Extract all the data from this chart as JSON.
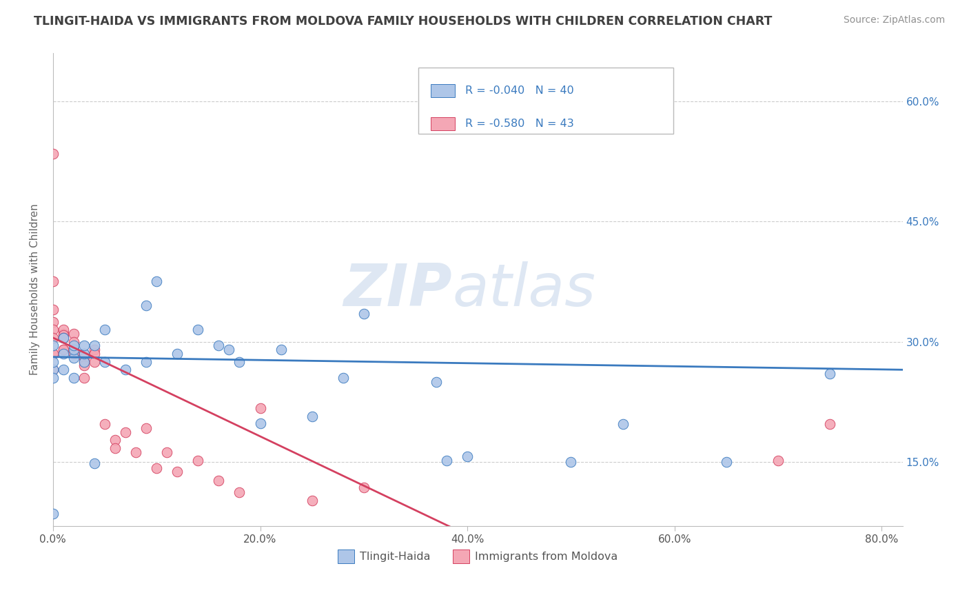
{
  "title": "TLINGIT-HAIDA VS IMMIGRANTS FROM MOLDOVA FAMILY HOUSEHOLDS WITH CHILDREN CORRELATION CHART",
  "source": "Source: ZipAtlas.com",
  "ylabel": "Family Households with Children",
  "legend_label1": "Tlingit-Haida",
  "legend_label2": "Immigrants from Moldova",
  "R1": -0.04,
  "N1": 40,
  "R2": -0.58,
  "N2": 43,
  "color1": "#aec6e8",
  "color2": "#f4a7b5",
  "color1_line": "#3a7abf",
  "color2_line": "#d44060",
  "xlim": [
    0.0,
    0.82
  ],
  "ylim": [
    0.07,
    0.66
  ],
  "x_tick_vals": [
    0.0,
    0.2,
    0.4,
    0.6,
    0.8
  ],
  "x_tick_labels": [
    "0.0%",
    "20.0%",
    "40.0%",
    "60.0%",
    "80.0%"
  ],
  "y_tick_vals": [
    0.15,
    0.3,
    0.45,
    0.6
  ],
  "y_tick_labels": [
    "15.0%",
    "30.0%",
    "45.0%",
    "60.0%"
  ],
  "tlingit_x": [
    0.0,
    0.0,
    0.0,
    0.0,
    0.0,
    0.01,
    0.01,
    0.01,
    0.02,
    0.02,
    0.02,
    0.02,
    0.03,
    0.03,
    0.03,
    0.04,
    0.04,
    0.05,
    0.05,
    0.07,
    0.09,
    0.09,
    0.1,
    0.12,
    0.14,
    0.16,
    0.17,
    0.18,
    0.2,
    0.22,
    0.25,
    0.28,
    0.3,
    0.37,
    0.38,
    0.4,
    0.5,
    0.55,
    0.65,
    0.75
  ],
  "tlingit_y": [
    0.085,
    0.265,
    0.275,
    0.295,
    0.255,
    0.265,
    0.285,
    0.305,
    0.255,
    0.28,
    0.29,
    0.295,
    0.275,
    0.285,
    0.295,
    0.148,
    0.295,
    0.275,
    0.315,
    0.265,
    0.345,
    0.275,
    0.375,
    0.285,
    0.315,
    0.295,
    0.29,
    0.275,
    0.198,
    0.29,
    0.207,
    0.255,
    0.335,
    0.25,
    0.152,
    0.157,
    0.15,
    0.197,
    0.15,
    0.26
  ],
  "moldova_x": [
    0.0,
    0.0,
    0.0,
    0.0,
    0.0,
    0.0,
    0.0,
    0.0,
    0.0,
    0.01,
    0.01,
    0.01,
    0.01,
    0.01,
    0.01,
    0.02,
    0.02,
    0.02,
    0.03,
    0.03,
    0.03,
    0.03,
    0.03,
    0.04,
    0.04,
    0.04,
    0.05,
    0.06,
    0.06,
    0.07,
    0.08,
    0.09,
    0.1,
    0.11,
    0.12,
    0.14,
    0.16,
    0.18,
    0.2,
    0.25,
    0.3,
    0.7,
    0.75
  ],
  "moldova_y": [
    0.535,
    0.375,
    0.34,
    0.325,
    0.315,
    0.305,
    0.285,
    0.285,
    0.265,
    0.31,
    0.315,
    0.308,
    0.305,
    0.29,
    0.29,
    0.31,
    0.3,
    0.285,
    0.285,
    0.28,
    0.275,
    0.27,
    0.255,
    0.29,
    0.285,
    0.275,
    0.197,
    0.177,
    0.167,
    0.187,
    0.162,
    0.192,
    0.142,
    0.162,
    0.138,
    0.152,
    0.127,
    0.112,
    0.217,
    0.102,
    0.118,
    0.152,
    0.197
  ],
  "background_color": "#ffffff",
  "grid_color": "#cccccc",
  "title_color": "#404040",
  "source_color": "#909090",
  "watermark": "ZIPatlas"
}
